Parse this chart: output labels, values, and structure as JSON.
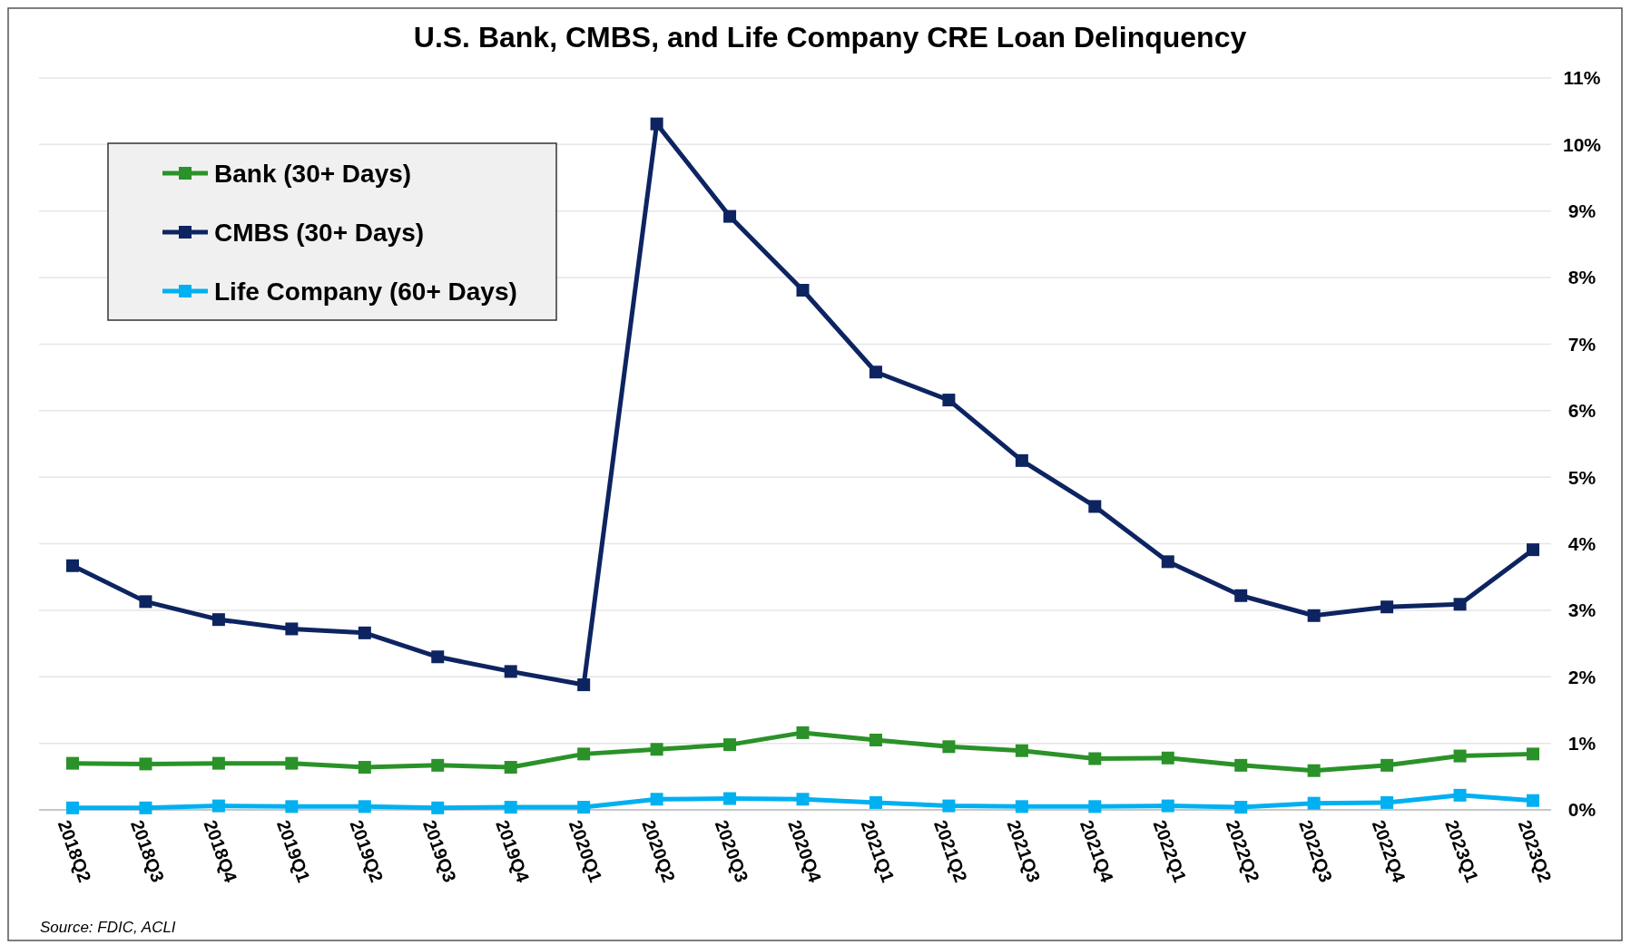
{
  "chart_data": {
    "type": "line",
    "title": "U.S. Bank, CMBS, and Life Company CRE Loan Delinquency",
    "categories": [
      "2018Q2",
      "2018Q3",
      "2018Q4",
      "2019Q1",
      "2019Q2",
      "2019Q3",
      "2019Q4",
      "2020Q1",
      "2020Q2",
      "2020Q3",
      "2020Q4",
      "2021Q1",
      "2021Q2",
      "2021Q3",
      "2021Q4",
      "2022Q1",
      "2022Q2",
      "2022Q3",
      "2022Q4",
      "2023Q1",
      "2023Q2"
    ],
    "series": [
      {
        "name": "Bank (30+ Days)",
        "color": "#2a9228",
        "values": [
          0.7,
          0.69,
          0.7,
          0.7,
          0.64,
          0.67,
          0.64,
          0.84,
          0.91,
          0.98,
          1.16,
          1.05,
          0.95,
          0.89,
          0.77,
          0.78,
          0.67,
          0.59,
          0.67,
          0.81,
          0.84
        ]
      },
      {
        "name": "CMBS (30+ Days)",
        "color": "#0d2461",
        "values": [
          3.67,
          3.13,
          2.86,
          2.72,
          2.66,
          2.3,
          2.08,
          1.88,
          10.31,
          8.92,
          7.81,
          6.58,
          6.16,
          5.25,
          4.56,
          3.73,
          3.22,
          2.92,
          3.05,
          3.09,
          3.91
        ]
      },
      {
        "name": "Life Company (60+ Days)",
        "color": "#00b0f0",
        "values": [
          0.03,
          0.03,
          0.06,
          0.05,
          0.05,
          0.03,
          0.04,
          0.04,
          0.16,
          0.17,
          0.16,
          0.11,
          0.06,
          0.05,
          0.05,
          0.06,
          0.04,
          0.1,
          0.11,
          0.22,
          0.14
        ]
      }
    ],
    "ylim": [
      0,
      11
    ],
    "yticks": [
      {
        "value": 0,
        "label": "0%"
      },
      {
        "value": 1,
        "label": "1%"
      },
      {
        "value": 2,
        "label": "2%"
      },
      {
        "value": 3,
        "label": "3%"
      },
      {
        "value": 4,
        "label": "4%"
      },
      {
        "value": 5,
        "label": "5%"
      },
      {
        "value": 6,
        "label": "6%"
      },
      {
        "value": 7,
        "label": "7%"
      },
      {
        "value": 8,
        "label": "8%"
      },
      {
        "value": 9,
        "label": "9%"
      },
      {
        "value": 10,
        "label": "10%"
      },
      {
        "value": 11,
        "label": "11%"
      }
    ],
    "grid": "y",
    "legend": "top left",
    "marker": "square",
    "line_style": "solid",
    "annotations": [
      "Source: FDIC, ACLI"
    ]
  }
}
